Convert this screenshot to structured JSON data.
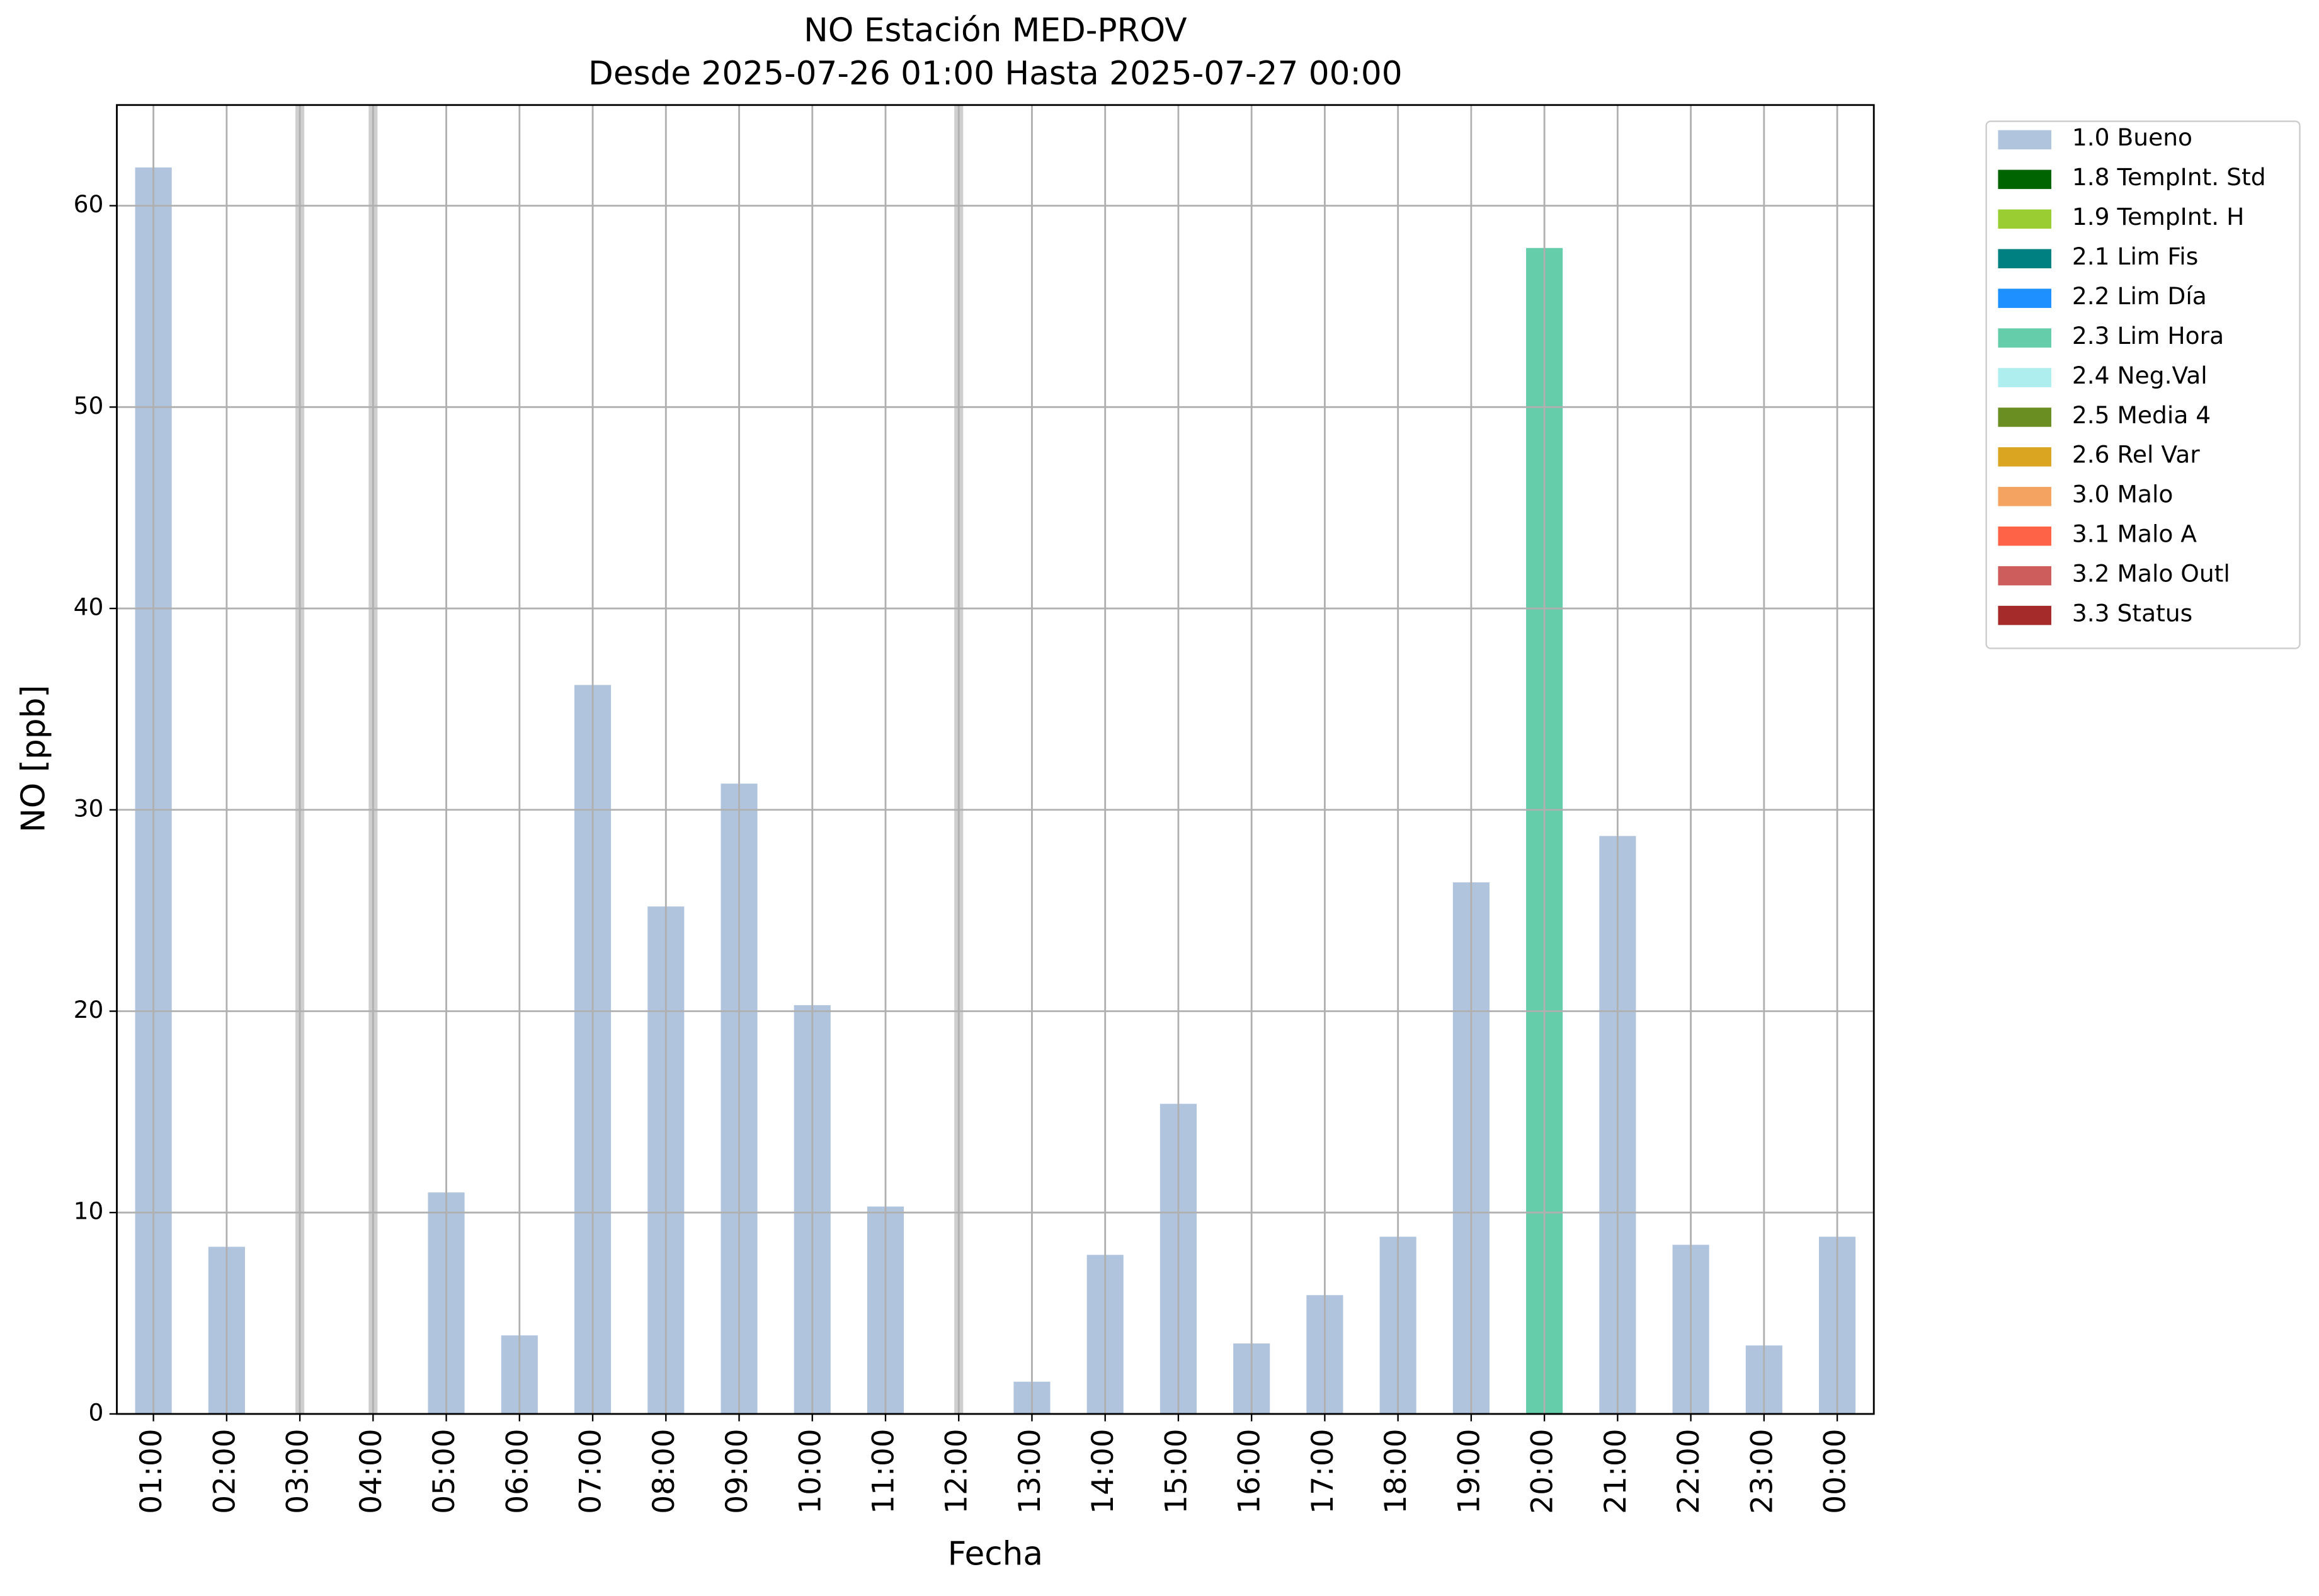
{
  "chart_data": {
    "type": "bar",
    "stacked": true,
    "title": "NO Estación MED-PROV",
    "subtitle": "Desde 2025-07-26 01:00 Hasta 2025-07-27 00:00",
    "x_label": "Fecha",
    "y_label": "NO [ppb]",
    "categories": [
      "01:00",
      "02:00",
      "03:00",
      "04:00",
      "05:00",
      "06:00",
      "07:00",
      "08:00",
      "09:00",
      "10:00",
      "11:00",
      "12:00",
      "13:00",
      "14:00",
      "15:00",
      "16:00",
      "17:00",
      "18:00",
      "19:00",
      "20:00",
      "21:00",
      "22:00",
      "23:00",
      "00:00"
    ],
    "series": [
      {
        "name": "1.0 Bueno",
        "color": "#b0c4de",
        "values": [
          61.9,
          8.3,
          null,
          null,
          11.0,
          3.9,
          36.2,
          25.2,
          31.3,
          20.3,
          10.3,
          null,
          1.6,
          7.9,
          15.4,
          3.5,
          5.9,
          8.8,
          26.4,
          null,
          28.7,
          8.4,
          3.4,
          8.8
        ]
      },
      {
        "name": "1.8 TempInt. Std",
        "color": "#006400",
        "values": [
          null,
          null,
          null,
          null,
          null,
          null,
          null,
          null,
          null,
          null,
          null,
          null,
          null,
          null,
          null,
          null,
          null,
          null,
          null,
          null,
          null,
          null,
          null,
          null
        ]
      },
      {
        "name": "1.9 TempInt. H",
        "color": "#9acd32",
        "values": [
          null,
          null,
          null,
          null,
          null,
          null,
          null,
          null,
          null,
          null,
          null,
          null,
          null,
          null,
          null,
          null,
          null,
          null,
          null,
          null,
          null,
          null,
          null,
          null
        ]
      },
      {
        "name": "2.1 Lim Fis",
        "color": "#008080",
        "values": [
          null,
          null,
          null,
          null,
          null,
          null,
          null,
          null,
          null,
          null,
          null,
          null,
          null,
          null,
          null,
          null,
          null,
          null,
          null,
          null,
          null,
          null,
          null,
          null
        ]
      },
      {
        "name": "2.2 Lim Día",
        "color": "#1e90ff",
        "values": [
          null,
          null,
          null,
          null,
          null,
          null,
          null,
          null,
          null,
          null,
          null,
          null,
          null,
          null,
          null,
          null,
          null,
          null,
          null,
          null,
          null,
          null,
          null,
          null
        ]
      },
      {
        "name": "2.3 Lim Hora",
        "color": "#66cdaa",
        "values": [
          null,
          null,
          null,
          null,
          null,
          null,
          null,
          null,
          null,
          null,
          null,
          null,
          null,
          null,
          null,
          null,
          null,
          null,
          null,
          57.9,
          null,
          null,
          null,
          null
        ]
      },
      {
        "name": "2.4 Neg.Val",
        "color": "#afeeee",
        "values": [
          null,
          null,
          null,
          null,
          null,
          null,
          null,
          null,
          null,
          null,
          null,
          null,
          null,
          null,
          null,
          null,
          null,
          null,
          null,
          null,
          null,
          null,
          null,
          null
        ]
      },
      {
        "name": "2.5 Media 4",
        "color": "#6b8e23",
        "values": [
          null,
          null,
          null,
          null,
          null,
          null,
          null,
          null,
          null,
          null,
          null,
          null,
          null,
          null,
          null,
          null,
          null,
          null,
          null,
          null,
          null,
          null,
          null,
          null
        ]
      },
      {
        "name": "2.6 Rel Var",
        "color": "#daa520",
        "values": [
          null,
          null,
          null,
          null,
          null,
          null,
          null,
          null,
          null,
          null,
          null,
          null,
          null,
          null,
          null,
          null,
          null,
          null,
          null,
          null,
          null,
          null,
          null,
          null
        ]
      },
      {
        "name": "3.0 Malo",
        "color": "#f4a460",
        "values": [
          null,
          null,
          null,
          null,
          null,
          null,
          null,
          null,
          null,
          null,
          null,
          null,
          null,
          null,
          null,
          null,
          null,
          null,
          null,
          null,
          null,
          null,
          null,
          null
        ]
      },
      {
        "name": "3.1 Malo A",
        "color": "#ff6347",
        "values": [
          null,
          null,
          null,
          null,
          null,
          null,
          null,
          null,
          null,
          null,
          null,
          null,
          null,
          null,
          null,
          null,
          null,
          null,
          null,
          null,
          null,
          null,
          null,
          null
        ]
      },
      {
        "name": "3.2 Malo Outl",
        "color": "#cd5c5c",
        "values": [
          null,
          null,
          null,
          null,
          null,
          null,
          null,
          null,
          null,
          null,
          null,
          null,
          null,
          null,
          null,
          null,
          null,
          null,
          null,
          null,
          null,
          null,
          null,
          null
        ]
      },
      {
        "name": "3.3 Status",
        "color": "#a52a2a",
        "values": [
          null,
          null,
          null,
          null,
          null,
          null,
          null,
          null,
          null,
          null,
          null,
          null,
          null,
          null,
          null,
          null,
          null,
          null,
          null,
          null,
          null,
          null,
          null,
          null
        ]
      }
    ],
    "ylim": [
      0,
      65
    ],
    "yticks": [
      0,
      10,
      20,
      30,
      40,
      50,
      60
    ],
    "grid": true,
    "legend": "outside right"
  }
}
